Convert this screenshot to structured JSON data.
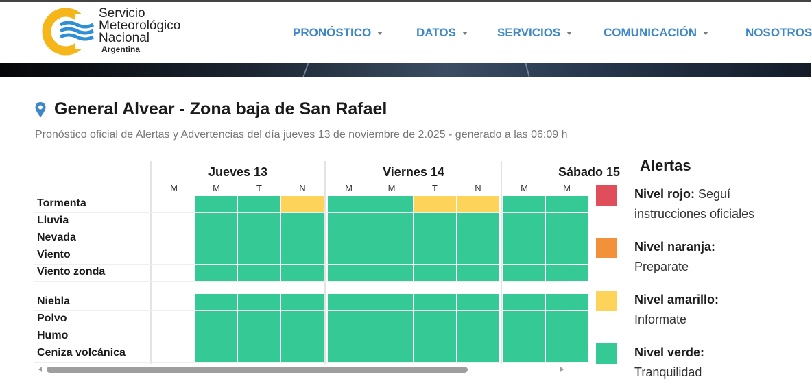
{
  "header": {
    "logo": {
      "line1": "Servicio",
      "line2": "Meteorológico",
      "line3": "Nacional",
      "sub": "Argentina"
    },
    "nav": [
      {
        "label": "PRONÓSTICO",
        "dropdown": true
      },
      {
        "label": "DATOS",
        "dropdown": true
      },
      {
        "label": "SERVICIOS",
        "dropdown": true
      },
      {
        "label": "COMUNICACIÓN",
        "dropdown": true
      },
      {
        "label": "NOSOTROS",
        "dropdown": false
      }
    ]
  },
  "location": {
    "title": "General Alvear - Zona baja de San Rafael",
    "icon": "map-pin-icon"
  },
  "subtitle": "Pronóstico oficial de Alertas y Advertencias del día jueves 13 de noviembre de 2.025 - generado a las 06:09 h",
  "table": {
    "days": [
      "Jueves 13",
      "Viernes 14",
      "Sábado 15"
    ],
    "slots": [
      "M",
      "M",
      "T",
      "N"
    ],
    "rows": [
      {
        "label": "Tormenta",
        "levels": [
          "none",
          "green",
          "green",
          "yellow",
          "green",
          "green",
          "yellow",
          "yellow",
          "green",
          "green"
        ]
      },
      {
        "label": "Lluvia",
        "levels": [
          "none",
          "green",
          "green",
          "green",
          "green",
          "green",
          "green",
          "green",
          "green",
          "green"
        ]
      },
      {
        "label": "Nevada",
        "levels": [
          "none",
          "green",
          "green",
          "green",
          "green",
          "green",
          "green",
          "green",
          "green",
          "green"
        ]
      },
      {
        "label": "Viento",
        "levels": [
          "none",
          "green",
          "green",
          "green",
          "green",
          "green",
          "green",
          "green",
          "green",
          "green"
        ]
      },
      {
        "label": "Viento zonda",
        "levels": [
          "none",
          "green",
          "green",
          "green",
          "green",
          "green",
          "green",
          "green",
          "green",
          "green"
        ]
      },
      {
        "label": "Niebla",
        "levels": [
          "none",
          "green",
          "green",
          "green",
          "green",
          "green",
          "green",
          "green",
          "green",
          "green"
        ]
      },
      {
        "label": "Polvo",
        "levels": [
          "none",
          "green",
          "green",
          "green",
          "green",
          "green",
          "green",
          "green",
          "green",
          "green"
        ]
      },
      {
        "label": "Humo",
        "levels": [
          "none",
          "green",
          "green",
          "green",
          "green",
          "green",
          "green",
          "green",
          "green",
          "green"
        ]
      },
      {
        "label": "Ceniza volcánica",
        "levels": [
          "none",
          "green",
          "green",
          "green",
          "green",
          "green",
          "green",
          "green",
          "green",
          "green"
        ]
      }
    ]
  },
  "legend": {
    "title": "Alertas",
    "items": [
      {
        "name": "Nivel rojo:",
        "desc_a": "Seguí",
        "desc_b": "instrucciones oficiales",
        "color": "#e04e5c"
      },
      {
        "name": "Nivel naranja:",
        "desc_a": "",
        "desc_b": "Preparate",
        "color": "#f2913a"
      },
      {
        "name": "Nivel amarillo:",
        "desc_a": "",
        "desc_b": "Informate",
        "color": "#fdd35a"
      },
      {
        "name": "Nivel verde:",
        "desc_a": "",
        "desc_b": "Tranquilidad",
        "color": "#35c995"
      }
    ]
  },
  "colors": {
    "green": "#35c995",
    "yellow": "#fdd35a",
    "nav": "#3e88c8"
  }
}
